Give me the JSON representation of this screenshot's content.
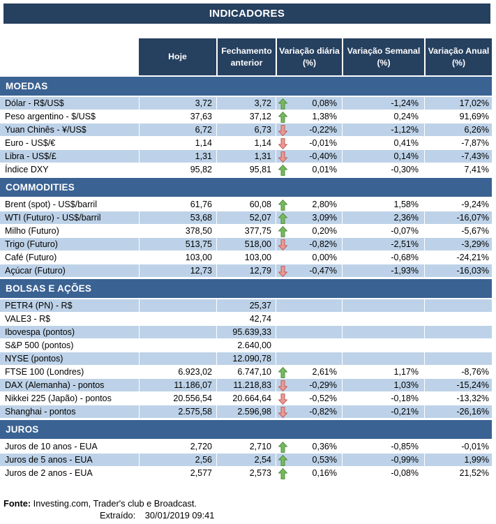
{
  "title": "INDICADORES",
  "columns": [
    "Hoje",
    "Fechamento anterior",
    "Variação diária (%)",
    "Variação Semanal (%)",
    "Variação Anual (%)"
  ],
  "sections": [
    {
      "name": "MOEDAS",
      "shaded_first": true,
      "rows": [
        {
          "label": "Dólar - R$/US$",
          "hoje": "3,72",
          "prev": "3,72",
          "arrow": "up",
          "diaria": "0,08%",
          "semanal": "-1,24%",
          "anual": "17,02%"
        },
        {
          "label": "Peso argentino - $/US$",
          "hoje": "37,63",
          "prev": "37,12",
          "arrow": "up",
          "diaria": "1,38%",
          "semanal": "0,24%",
          "anual": "91,69%"
        },
        {
          "label": "Yuan Chinês - ¥/US$",
          "hoje": "6,72",
          "prev": "6,73",
          "arrow": "down",
          "diaria": "-0,22%",
          "semanal": "-1,12%",
          "anual": "6,26%"
        },
        {
          "label": "Euro - US$/€",
          "hoje": "1,14",
          "prev": "1,14",
          "arrow": "down",
          "diaria": "-0,01%",
          "semanal": "0,41%",
          "anual": "-7,87%"
        },
        {
          "label": "Libra - US$/£",
          "hoje": "1,31",
          "prev": "1,31",
          "arrow": "down",
          "diaria": "-0,40%",
          "semanal": "0,14%",
          "anual": "-7,43%"
        },
        {
          "label": "Índice DXY",
          "hoje": "95,82",
          "prev": "95,81",
          "arrow": "up",
          "diaria": "0,01%",
          "semanal": "-0,30%",
          "anual": "7,41%"
        }
      ]
    },
    {
      "name": "COMMODITIES",
      "shaded_first": false,
      "rows": [
        {
          "label": "Brent (spot) - US$/barril",
          "hoje": "61,76",
          "prev": "60,08",
          "arrow": "up",
          "diaria": "2,80%",
          "semanal": "1,58%",
          "anual": "-9,24%"
        },
        {
          "label": "WTI (Futuro) - US$/barril",
          "hoje": "53,68",
          "prev": "52,07",
          "arrow": "up",
          "diaria": "3,09%",
          "semanal": "2,36%",
          "anual": "-16,07%"
        },
        {
          "label": "Milho (Futuro)",
          "hoje": "378,50",
          "prev": "377,75",
          "arrow": "up",
          "diaria": "0,20%",
          "semanal": "-0,07%",
          "anual": "-5,67%"
        },
        {
          "label": "Trigo (Futuro)",
          "hoje": "513,75",
          "prev": "518,00",
          "arrow": "down",
          "diaria": "-0,82%",
          "semanal": "-2,51%",
          "anual": "-3,29%"
        },
        {
          "label": "Café (Futuro)",
          "hoje": "103,00",
          "prev": "103,00",
          "arrow": "none",
          "diaria": "0,00%",
          "semanal": "-0,68%",
          "anual": "-24,21%"
        },
        {
          "label": "Açúcar (Futuro)",
          "hoje": "12,73",
          "prev": "12,79",
          "arrow": "down",
          "diaria": "-0,47%",
          "semanal": "-1,93%",
          "anual": "-16,03%"
        }
      ]
    },
    {
      "name": "BOLSAS E AÇÕES",
      "shaded_first": true,
      "rows": [
        {
          "label": "PETR4 (PN) - R$",
          "hoje": "",
          "prev": "25,37",
          "arrow": "none",
          "diaria": "",
          "semanal": "",
          "anual": ""
        },
        {
          "label": "VALE3 - R$",
          "hoje": "",
          "prev": "42,74",
          "arrow": "none",
          "diaria": "",
          "semanal": "",
          "anual": ""
        },
        {
          "label": "Ibovespa (pontos)",
          "hoje": "",
          "prev": "95.639,33",
          "arrow": "none",
          "diaria": "",
          "semanal": "",
          "anual": ""
        },
        {
          "label": "S&P 500 (pontos)",
          "hoje": "",
          "prev": "2.640,00",
          "arrow": "none",
          "diaria": "",
          "semanal": "",
          "anual": ""
        },
        {
          "label": "NYSE (pontos)",
          "hoje": "",
          "prev": "12.090,78",
          "arrow": "none",
          "diaria": "",
          "semanal": "",
          "anual": ""
        },
        {
          "label": "FTSE 100 (Londres)",
          "hoje": "6.923,02",
          "prev": "6.747,10",
          "arrow": "up",
          "diaria": "2,61%",
          "semanal": "1,17%",
          "anual": "-8,76%"
        },
        {
          "label": "DAX (Alemanha) - pontos",
          "hoje": "11.186,07",
          "prev": "11.218,83",
          "arrow": "down",
          "diaria": "-0,29%",
          "semanal": "1,03%",
          "anual": "-15,24%"
        },
        {
          "label": "Nikkei 225 (Japão) - pontos",
          "hoje": "20.556,54",
          "prev": "20.664,64",
          "arrow": "down",
          "diaria": "-0,52%",
          "semanal": "-0,18%",
          "anual": "-13,32%"
        },
        {
          "label": "Shanghai - pontos",
          "hoje": "2.575,58",
          "prev": "2.596,98",
          "arrow": "down",
          "diaria": "-0,82%",
          "semanal": "-0,21%",
          "anual": "-26,16%"
        }
      ]
    },
    {
      "name": "JUROS",
      "shaded_first": false,
      "rows": [
        {
          "label": "Juros de 10 anos - EUA",
          "hoje": "2,720",
          "prev": "2,710",
          "arrow": "up",
          "diaria": "0,36%",
          "semanal": "-0,85%",
          "anual": "-0,01%"
        },
        {
          "label": "Juros de 5 anos - EUA",
          "hoje": "2,56",
          "prev": "2,54",
          "arrow": "up",
          "diaria": "0,53%",
          "semanal": "-0,99%",
          "anual": "1,99%"
        },
        {
          "label": "Juros de 2 anos - EUA",
          "hoje": "2,577",
          "prev": "2,573",
          "arrow": "up",
          "diaria": "0,16%",
          "semanal": "-0,08%",
          "anual": "21,52%"
        }
      ]
    }
  ],
  "footer": {
    "fonte_label": "Fonte:",
    "fonte_text": "Investing.com, Trader's club e Broadcast.",
    "extraido_label": "Extraído:",
    "extraido_value": "30/01/2019 09:41"
  },
  "colors": {
    "navy": "#26405f",
    "section_blue": "#3a6292",
    "band_blue": "#bdd2e8",
    "arrow_up_fill": "#77b95e",
    "arrow_up_stroke": "#4a8a39",
    "arrow_down_fill": "#e89b94",
    "arrow_down_stroke": "#bf544e"
  }
}
